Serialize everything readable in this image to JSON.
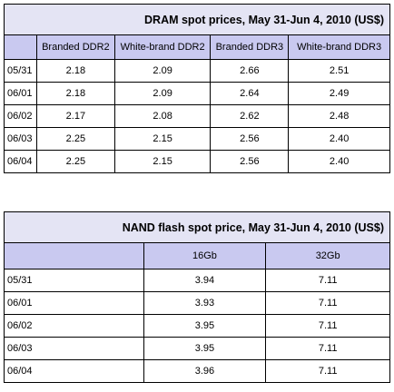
{
  "dram": {
    "title": "DRAM spot prices, May 31-Jun 4, 2010 (US$)",
    "columns": [
      "",
      "Branded DDR2",
      "White-brand DDR2",
      "Branded DDR3",
      "White-brand DDR3"
    ],
    "rows": [
      [
        "05/31",
        "2.18",
        "2.09",
        "2.66",
        "2.51"
      ],
      [
        "06/01",
        "2.18",
        "2.09",
        "2.64",
        "2.49"
      ],
      [
        "06/02",
        "2.17",
        "2.08",
        "2.62",
        "2.48"
      ],
      [
        "06/03",
        "2.25",
        "2.15",
        "2.56",
        "2.40"
      ],
      [
        "06/04",
        "2.25",
        "2.15",
        "2.56",
        "2.40"
      ]
    ]
  },
  "nand": {
    "title": "NAND flash spot price, May 31-Jun 4, 2010 (US$)",
    "columns": [
      "",
      "16Gb",
      "32Gb"
    ],
    "rows": [
      [
        "05/31",
        "3.94",
        "7.11"
      ],
      [
        "06/01",
        "3.93",
        "7.11"
      ],
      [
        "06/02",
        "3.95",
        "7.11"
      ],
      [
        "06/03",
        "3.95",
        "7.11"
      ],
      [
        "06/04",
        "3.96",
        "7.11"
      ]
    ]
  }
}
